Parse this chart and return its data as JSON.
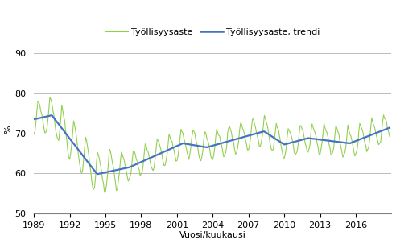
{
  "title": "",
  "xlabel": "Vuosi/kuukausi",
  "ylabel": "%",
  "legend_labels": [
    "Työllisyysaste",
    "Työllisyysaste, trendi"
  ],
  "line_color_actual": "#92d050",
  "line_color_trend": "#4472c4",
  "ylim": [
    50,
    92
  ],
  "yticks": [
    50,
    60,
    70,
    80,
    90
  ],
  "xlim": [
    1989,
    2019.0
  ],
  "xticks": [
    1989,
    1992,
    1995,
    1998,
    2001,
    2004,
    2007,
    2010,
    2013,
    2016
  ],
  "background_color": "#ffffff",
  "grid_color": "#b0b0b0",
  "trend_linewidth": 1.6,
  "actual_linewidth": 0.8
}
